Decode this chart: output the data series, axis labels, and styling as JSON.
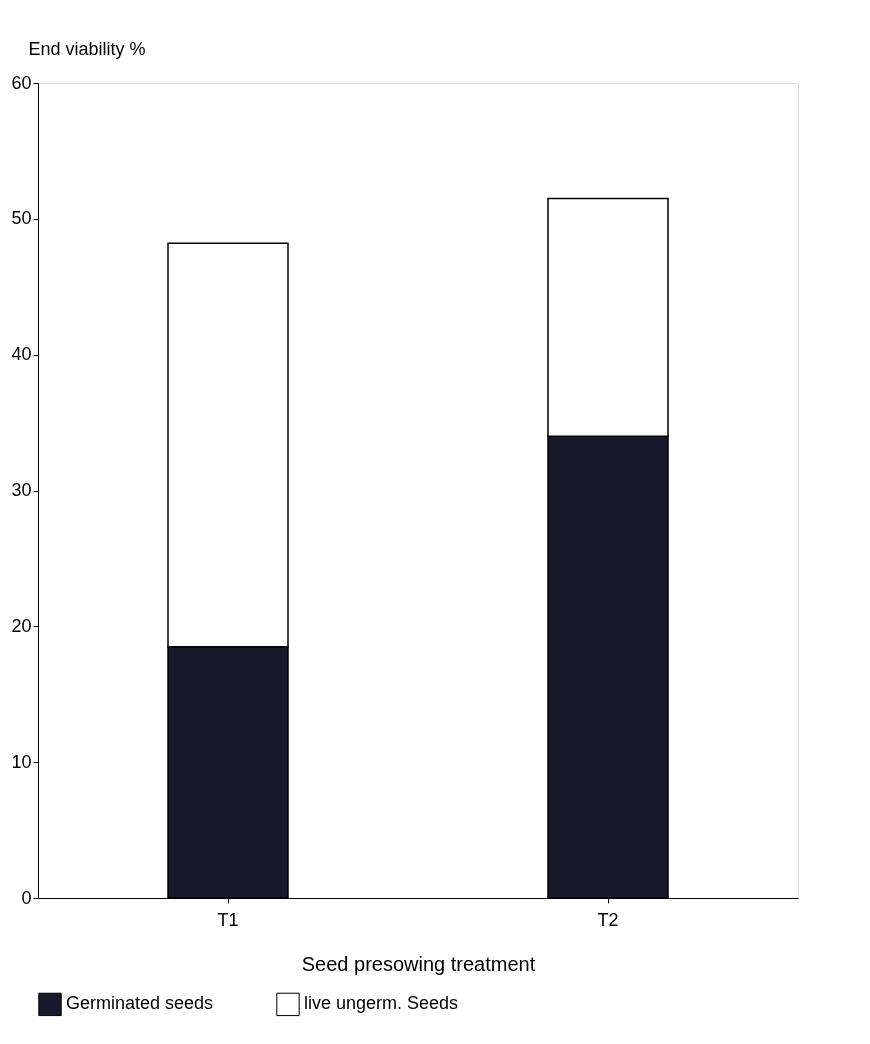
{
  "chart_data": {
    "type": "bar",
    "stacked": true,
    "xlabel": "Seed presowing treatment",
    "ylabel": "End viability %",
    "categories": [
      "T1",
      "T2"
    ],
    "series": [
      {
        "name": "Germinated seeds",
        "color": "#161a2a",
        "values": [
          18.5,
          34
        ]
      },
      {
        "name": "live ungerm. Seeds",
        "color": "#ffffff",
        "values": [
          29.7,
          17.5
        ]
      }
    ],
    "ylim": [
      0,
      60
    ],
    "yticks": [
      0,
      10,
      20,
      30,
      40,
      50,
      60
    ],
    "grid": false,
    "legend": "bottom"
  }
}
